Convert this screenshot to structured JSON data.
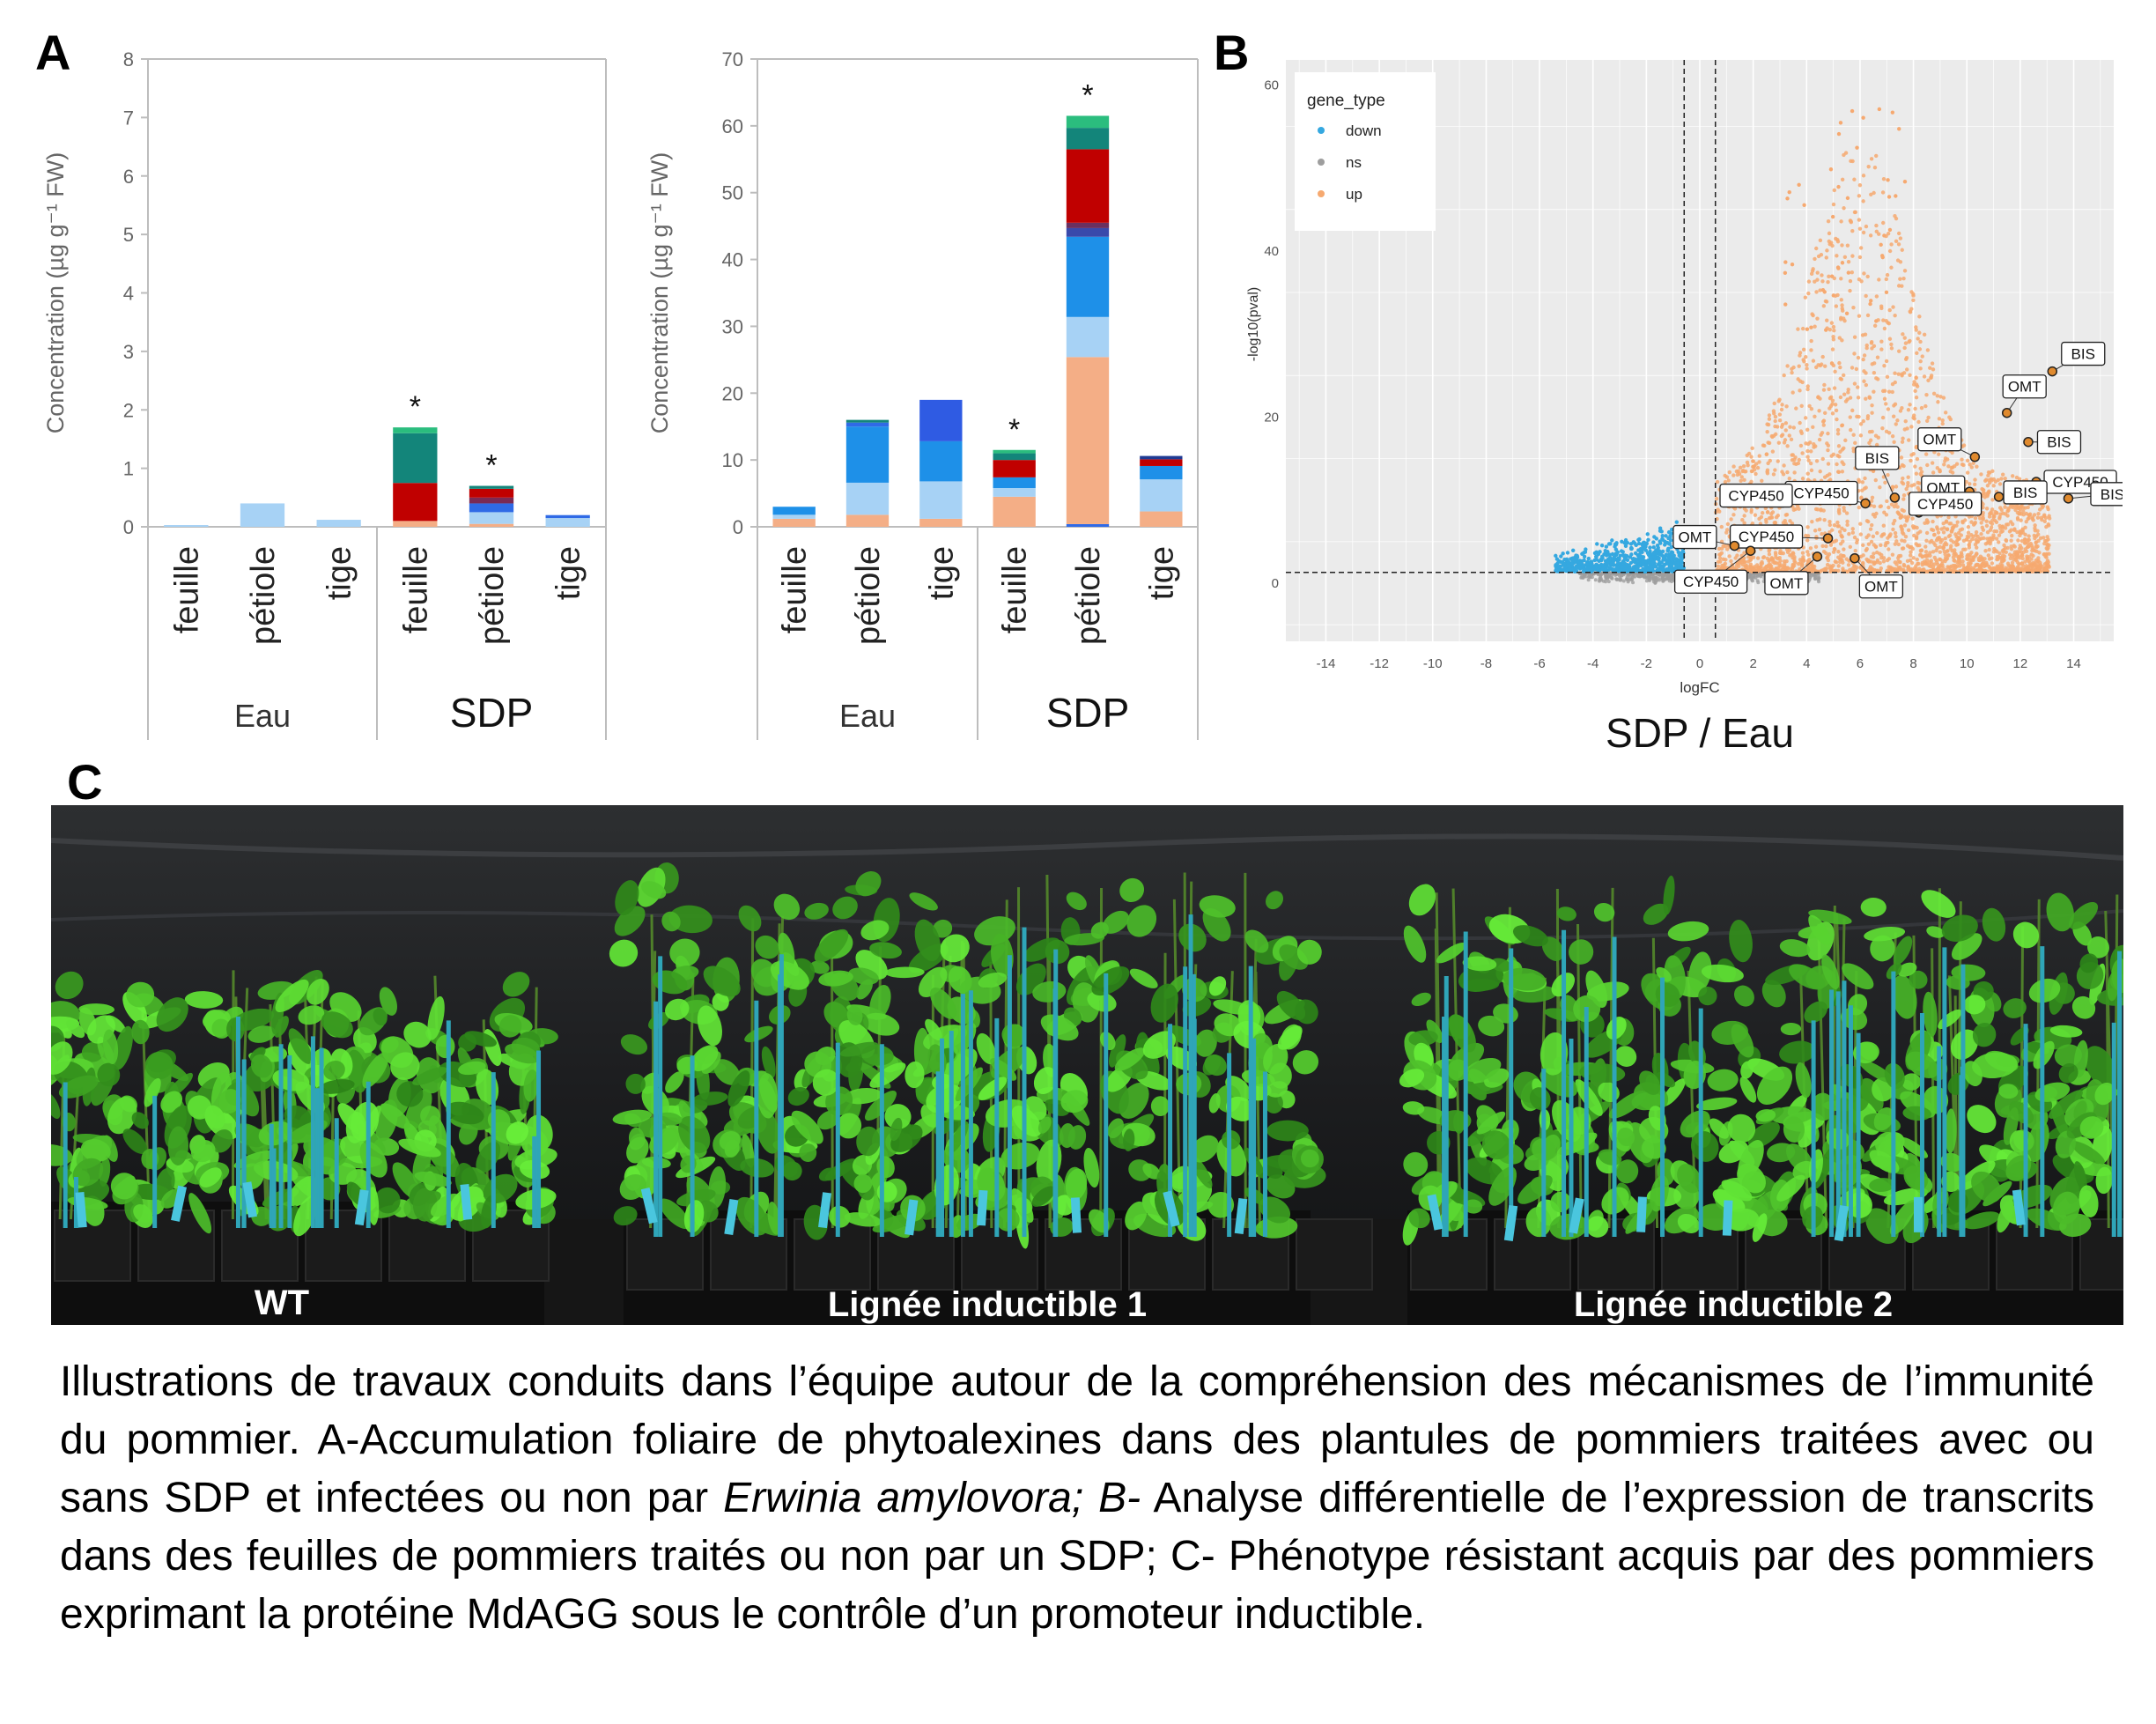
{
  "panels": {
    "a": "A",
    "b": "B",
    "c": "C"
  },
  "chart_data": [
    {
      "type": "bar",
      "stacked": true,
      "ylabel": "Concentration (µg g⁻¹ FW)",
      "ylim": [
        0,
        8
      ],
      "yticks": [
        0,
        1,
        2,
        3,
        4,
        5,
        6,
        7,
        8
      ],
      "categories": [
        "feuille",
        "pétiole",
        "tige",
        "feuille",
        "pétiole",
        "tige"
      ],
      "groups": [
        "Eau",
        "SDP"
      ],
      "stacks": [
        [
          {
            "value": 0.03,
            "color": "#a7d2f5"
          }
        ],
        [
          {
            "value": 0.4,
            "color": "#a7d2f5"
          }
        ],
        [
          {
            "value": 0.12,
            "color": "#a7d2f5"
          }
        ],
        [
          {
            "value": 0.1,
            "color": "#f4ae86"
          },
          {
            "value": 0.65,
            "color": "#c00000"
          },
          {
            "value": 0.85,
            "color": "#13857a"
          },
          {
            "value": 0.1,
            "color": "#2bbd7e"
          }
        ],
        [
          {
            "value": 0.05,
            "color": "#f4ae86"
          },
          {
            "value": 0.2,
            "color": "#a7d2f5"
          },
          {
            "value": 0.15,
            "color": "#2f6ae6"
          },
          {
            "value": 0.1,
            "color": "#7a2a55"
          },
          {
            "value": 0.15,
            "color": "#c00000"
          },
          {
            "value": 0.05,
            "color": "#13857a"
          }
        ],
        [
          {
            "value": 0.15,
            "color": "#a7d2f5"
          },
          {
            "value": 0.05,
            "color": "#2f6ae6"
          }
        ]
      ],
      "stars": [
        "",
        "",
        "",
        "*",
        "*",
        ""
      ]
    },
    {
      "type": "bar",
      "stacked": true,
      "ylabel": "Concentration (µg g⁻¹ FW)",
      "ylim": [
        0,
        70
      ],
      "yticks": [
        0,
        10,
        20,
        30,
        40,
        50,
        60,
        70
      ],
      "categories": [
        "feuille",
        "pétiole",
        "tige",
        "feuille",
        "pétiole",
        "tige"
      ],
      "groups": [
        "Eau",
        "SDP"
      ],
      "stacks": [
        [
          {
            "value": 1.2,
            "color": "#f4ae86"
          },
          {
            "value": 0.6,
            "color": "#a7d2f5"
          },
          {
            "value": 1.2,
            "color": "#1e90e8"
          }
        ],
        [
          {
            "value": 1.8,
            "color": "#f4ae86"
          },
          {
            "value": 4.8,
            "color": "#a7d2f5"
          },
          {
            "value": 8.4,
            "color": "#1e90e8"
          },
          {
            "value": 0.6,
            "color": "#2f6ae6"
          },
          {
            "value": 0.4,
            "color": "#13857a"
          }
        ],
        [
          {
            "value": 1.2,
            "color": "#f4ae86"
          },
          {
            "value": 5.6,
            "color": "#a7d2f5"
          },
          {
            "value": 6.0,
            "color": "#1e90e8"
          },
          {
            "value": 6.2,
            "color": "#2f5be3"
          }
        ],
        [
          {
            "value": 4.5,
            "color": "#f4ae86"
          },
          {
            "value": 1.3,
            "color": "#a7d2f5"
          },
          {
            "value": 1.6,
            "color": "#1e90e8"
          },
          {
            "value": 2.6,
            "color": "#c00000"
          },
          {
            "value": 1.0,
            "color": "#13857a"
          },
          {
            "value": 0.5,
            "color": "#2bbd7e"
          }
        ],
        [
          {
            "value": 0.4,
            "color": "#2f6ae6"
          },
          {
            "value": 25.0,
            "color": "#f4ae86"
          },
          {
            "value": 6.0,
            "color": "#a7d2f5"
          },
          {
            "value": 12.0,
            "color": "#1e90e8"
          },
          {
            "value": 1.3,
            "color": "#3949ab"
          },
          {
            "value": 0.8,
            "color": "#6a3060"
          },
          {
            "value": 11.0,
            "color": "#c00000"
          },
          {
            "value": 3.2,
            "color": "#13857a"
          },
          {
            "value": 1.8,
            "color": "#2bbd7e"
          }
        ],
        [
          {
            "value": 2.3,
            "color": "#f4ae86"
          },
          {
            "value": 4.8,
            "color": "#a7d2f5"
          },
          {
            "value": 2.0,
            "color": "#1e90e8"
          },
          {
            "value": 1.0,
            "color": "#c00000"
          },
          {
            "value": 0.5,
            "color": "#1f3a93"
          }
        ]
      ],
      "stars": [
        "",
        "",
        "",
        "*",
        "*",
        ""
      ]
    },
    {
      "type": "scatter",
      "subtitle": "SDP / Eau",
      "xlabel": "logFC",
      "ylabel": "-log10(pval)",
      "xlim": [
        -15.5,
        15.5
      ],
      "ylim": [
        -7,
        63
      ],
      "xticks": [
        -14,
        -12,
        -10,
        -8,
        -6,
        -4,
        -2,
        0,
        2,
        4,
        6,
        8,
        10,
        12,
        14
      ],
      "yticks": [
        0,
        20,
        40,
        60
      ],
      "thresholds": {
        "x": [
          -0.585,
          0.585
        ],
        "y": 1.3
      },
      "legend": {
        "title": "gene_type",
        "position": "top-left",
        "entries": [
          {
            "label": "down",
            "color": "#35a8e0"
          },
          {
            "label": "ns",
            "color": "#9e9e9e"
          },
          {
            "label": "up",
            "color": "#f6a970"
          }
        ]
      },
      "highlighted": [
        {
          "label": "BIS",
          "x": 13.2,
          "y": 25.5
        },
        {
          "label": "OMT",
          "x": 11.5,
          "y": 20.5
        },
        {
          "label": "BIS",
          "x": 12.3,
          "y": 17.0
        },
        {
          "label": "OMT",
          "x": 10.3,
          "y": 15.2
        },
        {
          "label": "BIS",
          "x": 7.3,
          "y": 10.3
        },
        {
          "label": "CYP450",
          "x": 12.6,
          "y": 12.2
        },
        {
          "label": "OMT",
          "x": 10.1,
          "y": 11.0
        },
        {
          "label": "CYP450",
          "x": 6.2,
          "y": 9.6
        },
        {
          "label": "CYP450",
          "x": 3.1,
          "y": 9.7
        },
        {
          "label": "CYP450",
          "x": 8.2,
          "y": 8.5
        },
        {
          "label": "BIS",
          "x": 11.2,
          "y": 10.4
        },
        {
          "label": "BIS",
          "x": 13.8,
          "y": 10.2
        },
        {
          "label": "CYP450",
          "x": 4.8,
          "y": 5.4
        },
        {
          "label": "OMT",
          "x": 1.3,
          "y": 4.5
        },
        {
          "label": "CYP450",
          "x": 1.9,
          "y": 3.9
        },
        {
          "label": "OMT",
          "x": 4.4,
          "y": 3.2
        },
        {
          "label": "OMT",
          "x": 5.8,
          "y": 3.0
        }
      ]
    }
  ],
  "photo": {
    "labels": [
      "WT",
      "Lignée inductible 1",
      "Lignée inductible 2"
    ]
  },
  "caption": {
    "part1": "Illustrations de travaux conduits dans l’équipe autour de la compréhension des mécanismes de l’immunité du pommier. A-Accumulation foliaire de phytoalexines dans des plantules de pommiers traitées avec ou sans SDP et infectées ou non par ",
    "species": "Erwinia amylovora; B-",
    "part2": " Analyse différentielle de l’expression de transcrits dans des feuilles de pommiers traités ou non par un SDP; C- Phénotype résistant acquis par des pommiers exprimant la protéine MdAGG sous le contrôle d’un promoteur inductible."
  }
}
